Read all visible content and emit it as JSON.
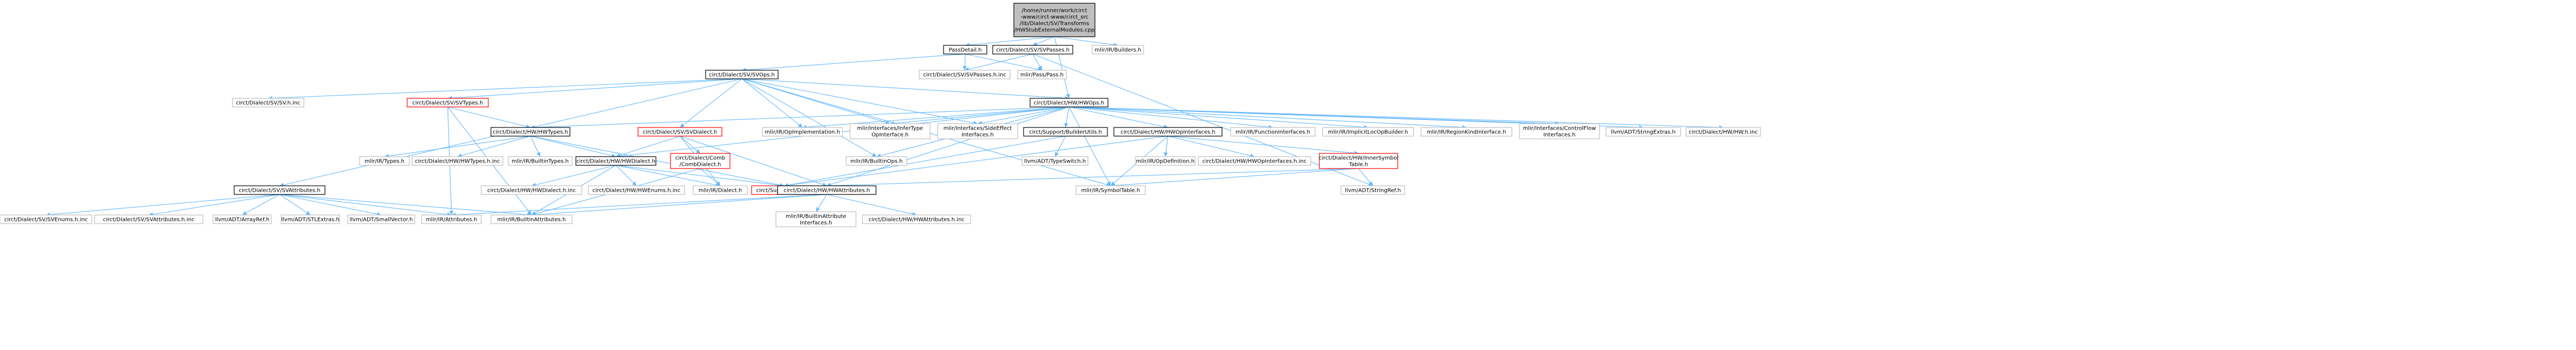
{
  "colors": {
    "background": "#ffffff",
    "root_fill": "#bfbfbf",
    "node_fill": "#ffffff",
    "node_border": "#000000",
    "external_border": "#bfbfbf",
    "truncated_border": "#ff0000",
    "edge": "#63b8ff"
  },
  "nodes": [
    {
      "id": "root",
      "kind": "root",
      "lines": [
        "/home/runner/work/circt",
        "-www/circt-www/circt_src",
        "/lib/Dialect/SV/Transforms",
        "/HWStubExternalModules.cpp"
      ]
    },
    {
      "id": "passdetail",
      "kind": "normal",
      "lines": [
        "PassDetail.h"
      ]
    },
    {
      "id": "svpasses",
      "kind": "normal",
      "lines": [
        "circt/Dialect/SV/SVPasses.h"
      ]
    },
    {
      "id": "builders",
      "kind": "external",
      "lines": [
        "mlir/IR/Builders.h"
      ]
    },
    {
      "id": "svpassesinc",
      "kind": "external",
      "lines": [
        "circt/Dialect/SV/SVPasses.h.inc"
      ]
    },
    {
      "id": "pass",
      "kind": "external",
      "lines": [
        "mlir/Pass/Pass.h"
      ]
    },
    {
      "id": "svops",
      "kind": "normal",
      "lines": [
        "circt/Dialect/SV/SVOps.h"
      ]
    },
    {
      "id": "hwops",
      "kind": "normal",
      "lines": [
        "circt/Dialect/HW/HWOps.h"
      ]
    },
    {
      "id": "svinc",
      "kind": "external",
      "lines": [
        "circt/Dialect/SV/SV.h.inc"
      ]
    },
    {
      "id": "svtypes",
      "kind": "truncated",
      "lines": [
        "circt/Dialect/SV/SVTypes.h"
      ]
    },
    {
      "id": "hwtypes",
      "kind": "normal",
      "lines": [
        "circt/Dialect/HW/HWTypes.h"
      ]
    },
    {
      "id": "svdialect",
      "kind": "truncated",
      "lines": [
        "circt/Dialect/SV/SVDialect.h"
      ]
    },
    {
      "id": "opimpl",
      "kind": "external",
      "lines": [
        "mlir/IR/OpImplementation.h"
      ]
    },
    {
      "id": "infertype",
      "kind": "external",
      "lines": [
        "mlir/Interfaces/InferType",
        "OpInterface.h"
      ]
    },
    {
      "id": "sideeffect",
      "kind": "external",
      "lines": [
        "mlir/Interfaces/SideEffect",
        "Interfaces.h"
      ]
    },
    {
      "id": "builderutils",
      "kind": "normal",
      "lines": [
        "circt/Support/BuilderUtils.h"
      ]
    },
    {
      "id": "hwopinterfaces",
      "kind": "normal",
      "lines": [
        "circt/Dialect/HW/HWOpInterfaces.h"
      ]
    },
    {
      "id": "funcinterfaces",
      "kind": "external",
      "lines": [
        "mlir/IR/FunctionInterfaces.h"
      ]
    },
    {
      "id": "implicitloc",
      "kind": "external",
      "lines": [
        "mlir/IR/ImplicitLocOpBuilder.h"
      ]
    },
    {
      "id": "regionkind",
      "kind": "external",
      "lines": [
        "mlir/IR/RegionKindInterface.h"
      ]
    },
    {
      "id": "controlflow",
      "kind": "external",
      "lines": [
        "mlir/Interfaces/ControlFlow",
        "Interfaces.h"
      ]
    },
    {
      "id": "stringextras",
      "kind": "external",
      "lines": [
        "llvm/ADT/StringExtras.h"
      ]
    },
    {
      "id": "hwinc",
      "kind": "external",
      "lines": [
        "circt/Dialect/HW/HW.h.inc"
      ]
    },
    {
      "id": "irtypes",
      "kind": "external",
      "lines": [
        "mlir/IR/Types.h"
      ]
    },
    {
      "id": "hwtypesinc",
      "kind": "external",
      "lines": [
        "circt/Dialect/HW/HWTypes.h.inc"
      ]
    },
    {
      "id": "builtintypes",
      "kind": "external",
      "lines": [
        "mlir/IR/BuiltinTypes.h"
      ]
    },
    {
      "id": "hwdialect",
      "kind": "normal",
      "lines": [
        "circt/Dialect/HW/HWDialect.h"
      ]
    },
    {
      "id": "combdialect",
      "kind": "truncated",
      "lines": [
        "circt/Dialect/Comb",
        "/CombDialect.h"
      ]
    },
    {
      "id": "builtinops",
      "kind": "external",
      "lines": [
        "mlir/IR/BuiltinOps.h"
      ]
    },
    {
      "id": "typeswitch",
      "kind": "external",
      "lines": [
        "llvm/ADT/TypeSwitch.h"
      ]
    },
    {
      "id": "opdefinition",
      "kind": "external",
      "lines": [
        "mlir/IR/OpDefinition.h"
      ]
    },
    {
      "id": "hwopinterfacesinc",
      "kind": "external",
      "lines": [
        "circt/Dialect/HW/HWOpInterfaces.h.inc"
      ]
    },
    {
      "id": "innersymtable",
      "kind": "truncated",
      "lines": [
        "circt/Dialect/HW/InnerSymbol",
        "Table.h"
      ]
    },
    {
      "id": "svattributes",
      "kind": "normal",
      "lines": [
        "circt/Dialect/SV/SVAttributes.h"
      ]
    },
    {
      "id": "hwdialectinc",
      "kind": "external",
      "lines": [
        "circt/Dialect/HW/HWDialect.h.inc"
      ]
    },
    {
      "id": "hwenumsinc",
      "kind": "external",
      "lines": [
        "circt/Dialect/HW/HWEnums.h.inc"
      ]
    },
    {
      "id": "irdialect",
      "kind": "external",
      "lines": [
        "mlir/IR/Dialect.h"
      ]
    },
    {
      "id": "llvm",
      "kind": "truncated",
      "lines": [
        "circt/Support/LLVM.h"
      ]
    },
    {
      "id": "hwattributes",
      "kind": "normal",
      "lines": [
        "circt/Dialect/HW/HWAttributes.h"
      ]
    },
    {
      "id": "symboltable",
      "kind": "external",
      "lines": [
        "mlir/IR/SymbolTable.h"
      ]
    },
    {
      "id": "stringref",
      "kind": "external",
      "lines": [
        "llvm/ADT/StringRef.h"
      ]
    },
    {
      "id": "svenumsinc",
      "kind": "external",
      "lines": [
        "circt/Dialect/SV/SVEnums.h.inc"
      ]
    },
    {
      "id": "svattributesinc",
      "kind": "external",
      "lines": [
        "circt/Dialect/SV/SVAttributes.h.inc"
      ]
    },
    {
      "id": "arrayref",
      "kind": "external",
      "lines": [
        "llvm/ADT/ArrayRef.h"
      ]
    },
    {
      "id": "stlextras",
      "kind": "external",
      "lines": [
        "llvm/ADT/STLExtras.h"
      ]
    },
    {
      "id": "smallvector",
      "kind": "external",
      "lines": [
        "llvm/ADT/SmallVector.h"
      ]
    },
    {
      "id": "irattributes",
      "kind": "external",
      "lines": [
        "mlir/IR/Attributes.h"
      ]
    },
    {
      "id": "builtinattributes",
      "kind": "external",
      "lines": [
        "mlir/IR/BuiltinAttributes.h"
      ]
    },
    {
      "id": "builtinattrinterfaces",
      "kind": "external",
      "lines": [
        "mlir/IR/BuiltinAttribute",
        "Interfaces.h"
      ]
    },
    {
      "id": "hwattributesinc",
      "kind": "external",
      "lines": [
        "circt/Dialect/HW/HWAttributes.h.inc"
      ]
    }
  ],
  "edges": [
    [
      "root",
      "passdetail"
    ],
    [
      "root",
      "svpasses"
    ],
    [
      "root",
      "builders"
    ],
    [
      "root",
      "hwops"
    ],
    [
      "passdetail",
      "svops"
    ],
    [
      "passdetail",
      "svpassesinc"
    ],
    [
      "passdetail",
      "pass"
    ],
    [
      "svpasses",
      "svpassesinc"
    ],
    [
      "svpasses",
      "pass"
    ],
    [
      "svpasses",
      "stringref"
    ],
    [
      "svops",
      "svinc"
    ],
    [
      "svops",
      "svtypes"
    ],
    [
      "svops",
      "svdialect"
    ],
    [
      "svops",
      "hwops"
    ],
    [
      "svops",
      "opimpl"
    ],
    [
      "svops",
      "infertype"
    ],
    [
      "svops",
      "sideeffect"
    ],
    [
      "svops",
      "svattributes"
    ],
    [
      "svops",
      "builtinops"
    ],
    [
      "svops",
      "symboltable"
    ],
    [
      "svtypes",
      "hwtypes"
    ],
    [
      "svtypes",
      "irattributes"
    ],
    [
      "svtypes",
      "builtinattributes"
    ],
    [
      "hwops",
      "hwtypes"
    ],
    [
      "hwops",
      "opimpl"
    ],
    [
      "hwops",
      "infertype"
    ],
    [
      "hwops",
      "sideeffect"
    ],
    [
      "hwops",
      "builderutils"
    ],
    [
      "hwops",
      "hwopinterfaces"
    ],
    [
      "hwops",
      "funcinterfaces"
    ],
    [
      "hwops",
      "implicitloc"
    ],
    [
      "hwops",
      "regionkind"
    ],
    [
      "hwops",
      "controlflow"
    ],
    [
      "hwops",
      "stringextras"
    ],
    [
      "hwops",
      "hwinc"
    ],
    [
      "hwops",
      "hwdialect"
    ],
    [
      "hwops",
      "builtinops"
    ],
    [
      "hwops",
      "hwattributes"
    ],
    [
      "hwops",
      "symboltable"
    ],
    [
      "hwtypes",
      "irtypes"
    ],
    [
      "hwtypes",
      "hwtypesinc"
    ],
    [
      "hwtypes",
      "builtintypes"
    ],
    [
      "hwtypes",
      "hwdialect"
    ],
    [
      "hwtypes",
      "llvm"
    ],
    [
      "svdialect",
      "combdialect"
    ],
    [
      "svdialect",
      "hwdialect"
    ],
    [
      "svdialect",
      "irdialect"
    ],
    [
      "svdialect",
      "hwattributes"
    ],
    [
      "combdialect",
      "irdialect"
    ],
    [
      "combdialect",
      "builtinattributes"
    ],
    [
      "hwdialect",
      "hwdialectinc"
    ],
    [
      "hwdialect",
      "hwenumsinc"
    ],
    [
      "hwdialect",
      "irdialect"
    ],
    [
      "hwdialect",
      "llvm"
    ],
    [
      "hwdialect",
      "builtinattributes"
    ],
    [
      "builderutils",
      "typeswitch"
    ],
    [
      "builderutils",
      "llvm"
    ],
    [
      "hwopinterfaces",
      "opdefinition"
    ],
    [
      "hwopinterfaces",
      "hwopinterfacesinc"
    ],
    [
      "hwopinterfaces",
      "innersymtable"
    ],
    [
      "hwopinterfaces",
      "llvm"
    ],
    [
      "hwopinterfaces",
      "symboltable"
    ],
    [
      "innersymtable",
      "hwattributes"
    ],
    [
      "innersymtable",
      "symboltable"
    ],
    [
      "innersymtable",
      "stringref"
    ],
    [
      "hwattributes",
      "builtinattrinterfaces"
    ],
    [
      "hwattributes",
      "hwattributesinc"
    ],
    [
      "hwattributes",
      "irattributes"
    ],
    [
      "hwattributes",
      "builtinattributes"
    ],
    [
      "svattributes",
      "svenumsinc"
    ],
    [
      "svattributes",
      "svattributesinc"
    ],
    [
      "svattributes",
      "arrayref"
    ],
    [
      "svattributes",
      "stlextras"
    ],
    [
      "svattributes",
      "smallvector"
    ],
    [
      "svattributes",
      "irattributes"
    ],
    [
      "svattributes",
      "builtinattributes"
    ]
  ]
}
